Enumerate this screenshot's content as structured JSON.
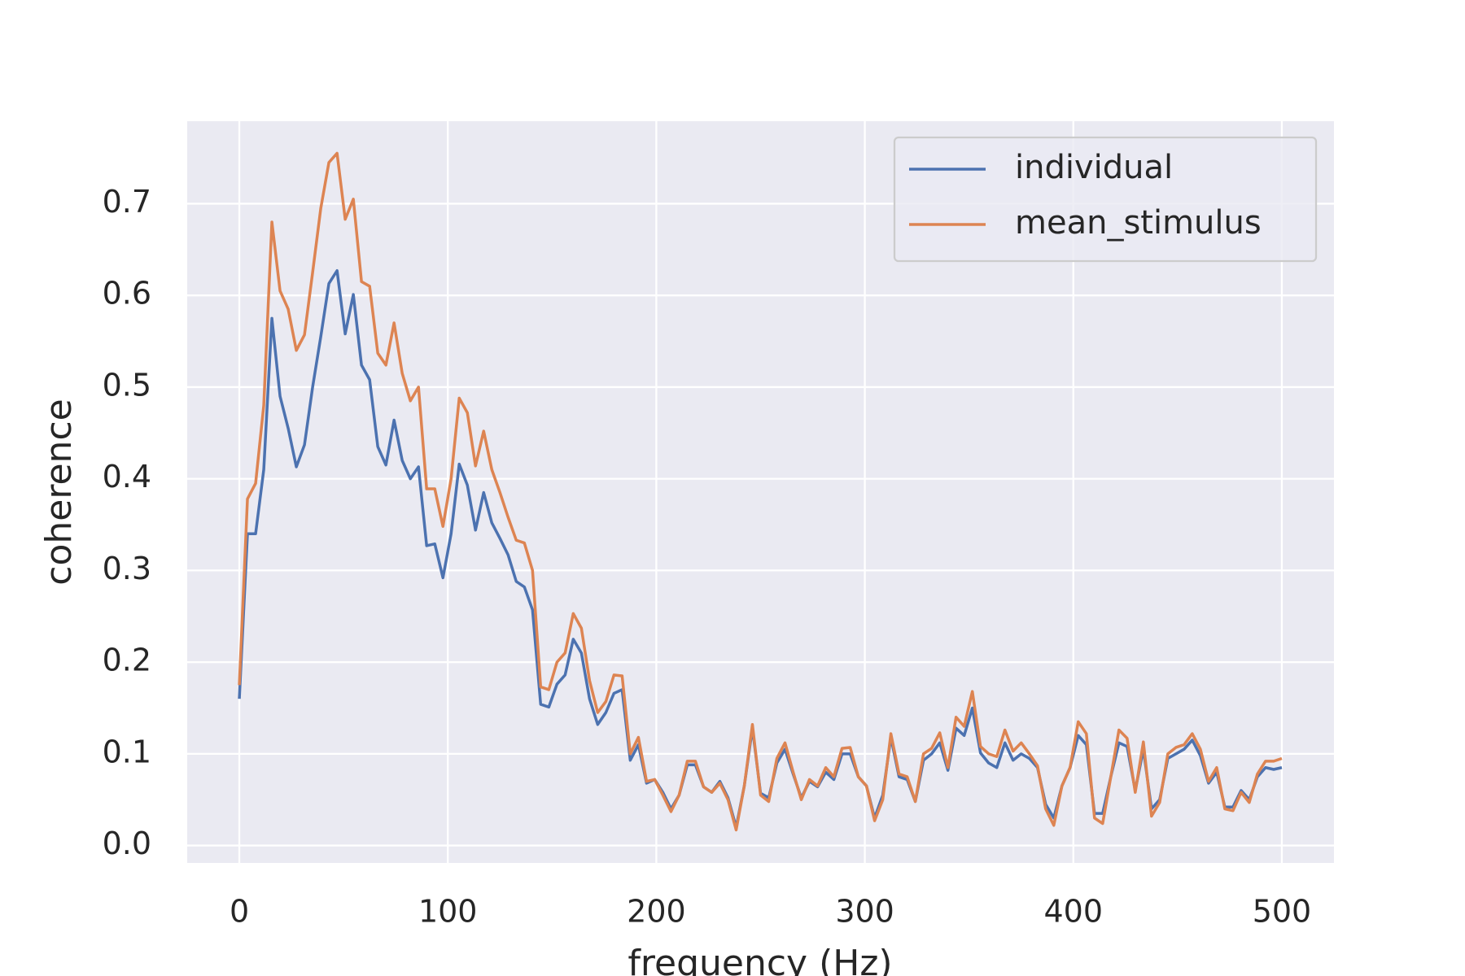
{
  "chart_data": {
    "type": "line",
    "xlabel": "frequency (Hz)",
    "ylabel": "coherence",
    "x": [
      0,
      3.90625,
      7.8125,
      11.71875,
      15.625,
      19.53125,
      23.4375,
      27.34375,
      31.25,
      35.15625,
      39.0625,
      42.96875,
      46.875,
      50.78125,
      54.6875,
      58.59375,
      62.5,
      66.40625,
      70.3125,
      74.21875,
      78.125,
      82.03125,
      85.9375,
      89.84375,
      93.75,
      97.65625,
      101.5625,
      105.46875,
      109.375,
      113.28125,
      117.1875,
      121.09375,
      125,
      128.90625,
      132.8125,
      136.71875,
      140.625,
      144.53125,
      148.4375,
      152.34375,
      156.25,
      160.15625,
      164.0625,
      167.96875,
      171.875,
      175.78125,
      179.6875,
      183.59375,
      187.5,
      191.40625,
      195.3125,
      199.21875,
      203.125,
      207.03125,
      210.9375,
      214.84375,
      218.75,
      222.65625,
      226.5625,
      230.46875,
      234.375,
      238.28125,
      242.1875,
      246.09375,
      250,
      253.90625,
      257.8125,
      261.71875,
      265.625,
      269.53125,
      273.4375,
      277.34375,
      281.25,
      285.15625,
      289.0625,
      292.96875,
      296.875,
      300.78125,
      304.6875,
      308.59375,
      312.5,
      316.40625,
      320.3125,
      324.21875,
      328.125,
      332.03125,
      335.9375,
      339.84375,
      343.75,
      347.65625,
      351.5625,
      355.46875,
      359.375,
      363.28125,
      367.1875,
      371.09375,
      375,
      378.90625,
      382.8125,
      386.71875,
      390.625,
      394.53125,
      398.4375,
      402.34375,
      406.25,
      410.15625,
      414.0625,
      417.96875,
      421.875,
      425.78125,
      429.6875,
      433.59375,
      437.5,
      441.40625,
      445.3125,
      449.21875,
      453.125,
      457.03125,
      460.9375,
      464.84375,
      468.75,
      472.65625,
      476.5625,
      480.46875,
      484.375,
      488.28125,
      492.1875,
      496.09375,
      500
    ],
    "series": [
      {
        "name": "individual",
        "color": "#4c72b0",
        "values": [
          0.16,
          0.34,
          0.34,
          0.41,
          0.575,
          0.49,
          0.455,
          0.413,
          0.437,
          0.5,
          0.555,
          0.613,
          0.627,
          0.558,
          0.601,
          0.524,
          0.508,
          0.435,
          0.415,
          0.464,
          0.42,
          0.4,
          0.413,
          0.327,
          0.329,
          0.292,
          0.34,
          0.416,
          0.393,
          0.344,
          0.385,
          0.352,
          0.335,
          0.317,
          0.288,
          0.282,
          0.257,
          0.154,
          0.151,
          0.176,
          0.186,
          0.225,
          0.21,
          0.16,
          0.132,
          0.145,
          0.166,
          0.17,
          0.093,
          0.11,
          0.068,
          0.072,
          0.058,
          0.04,
          0.055,
          0.088,
          0.088,
          0.064,
          0.058,
          0.07,
          0.052,
          0.02,
          0.065,
          0.128,
          0.057,
          0.052,
          0.09,
          0.105,
          0.078,
          0.052,
          0.07,
          0.064,
          0.08,
          0.072,
          0.1,
          0.1,
          0.075,
          0.065,
          0.03,
          0.055,
          0.118,
          0.075,
          0.072,
          0.048,
          0.093,
          0.1,
          0.112,
          0.082,
          0.128,
          0.12,
          0.15,
          0.101,
          0.09,
          0.085,
          0.112,
          0.093,
          0.1,
          0.095,
          0.085,
          0.045,
          0.03,
          0.065,
          0.085,
          0.12,
          0.11,
          0.035,
          0.035,
          0.075,
          0.112,
          0.108,
          0.06,
          0.105,
          0.04,
          0.05,
          0.095,
          0.1,
          0.105,
          0.115,
          0.098,
          0.068,
          0.08,
          0.042,
          0.042,
          0.06,
          0.05,
          0.075,
          0.085,
          0.083,
          0.085
        ]
      },
      {
        "name": "mean_stimulus",
        "color": "#dd8452",
        "values": [
          0.175,
          0.378,
          0.395,
          0.48,
          0.68,
          0.605,
          0.585,
          0.54,
          0.557,
          0.625,
          0.695,
          0.745,
          0.755,
          0.683,
          0.705,
          0.615,
          0.61,
          0.537,
          0.524,
          0.57,
          0.515,
          0.485,
          0.5,
          0.389,
          0.389,
          0.348,
          0.4,
          0.488,
          0.472,
          0.414,
          0.452,
          0.41,
          0.385,
          0.358,
          0.333,
          0.33,
          0.3,
          0.173,
          0.17,
          0.2,
          0.21,
          0.253,
          0.237,
          0.18,
          0.145,
          0.157,
          0.186,
          0.185,
          0.1,
          0.118,
          0.07,
          0.072,
          0.055,
          0.037,
          0.055,
          0.092,
          0.092,
          0.064,
          0.058,
          0.068,
          0.05,
          0.017,
          0.065,
          0.132,
          0.055,
          0.048,
          0.095,
          0.112,
          0.08,
          0.05,
          0.072,
          0.065,
          0.085,
          0.075,
          0.106,
          0.107,
          0.075,
          0.065,
          0.027,
          0.05,
          0.122,
          0.078,
          0.075,
          0.048,
          0.1,
          0.106,
          0.123,
          0.085,
          0.14,
          0.13,
          0.168,
          0.108,
          0.1,
          0.097,
          0.126,
          0.103,
          0.112,
          0.1,
          0.087,
          0.04,
          0.022,
          0.065,
          0.085,
          0.135,
          0.122,
          0.03,
          0.024,
          0.075,
          0.126,
          0.117,
          0.058,
          0.113,
          0.032,
          0.047,
          0.1,
          0.107,
          0.11,
          0.122,
          0.105,
          0.07,
          0.085,
          0.04,
          0.038,
          0.058,
          0.047,
          0.078,
          0.092,
          0.092,
          0.095
        ]
      }
    ],
    "xlim": [
      -25,
      525
    ],
    "xticks": [
      0,
      100,
      200,
      300,
      400,
      500
    ],
    "ylim": [
      -0.019,
      0.79
    ],
    "yticks": [
      {
        "value": 0,
        "label": "0.0"
      },
      0.1,
      0.2,
      0.3,
      0.4,
      0.5,
      0.6,
      0.7
    ],
    "grid": true,
    "legend": "upper right",
    "background": "#eaeaf2"
  }
}
